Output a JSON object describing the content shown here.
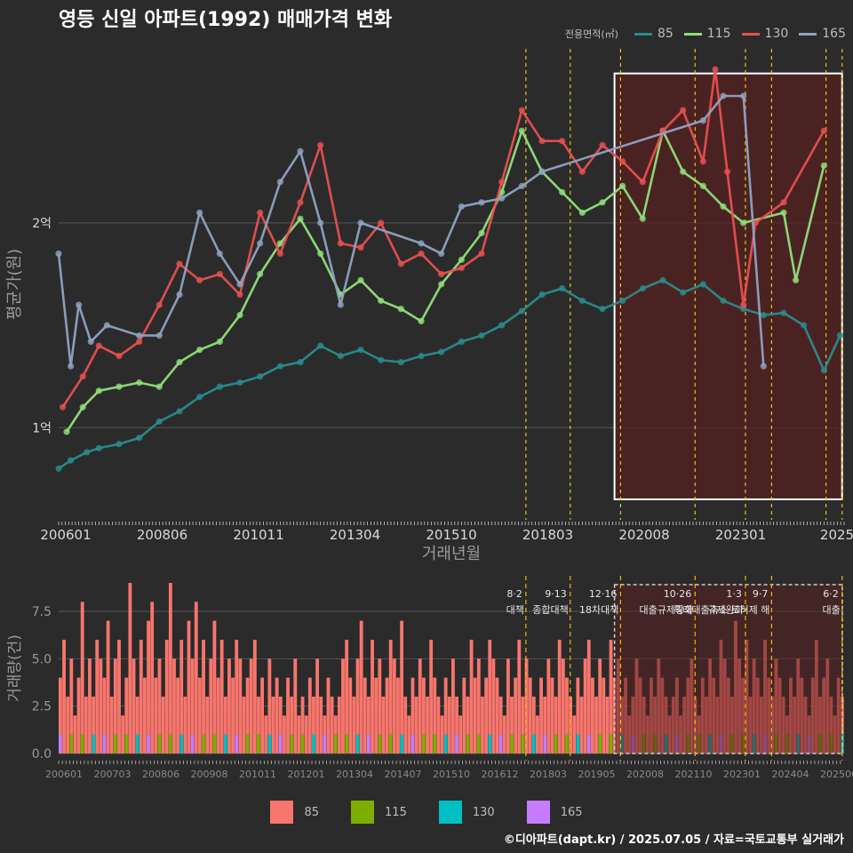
{
  "title": "영등 신일 아파트(1992) 매매가격 변화",
  "credit": "©디아파트(dapt.kr) / 2025.07.05 / 자료=국토교통부 실거래가",
  "colors": {
    "background": "#2b2b2b",
    "grid": "#555555",
    "axis_text": "#d9d9d9",
    "axis_title": "#9a9a9a",
    "event_line": "#e6c619",
    "highlight_fill": "#5a2020",
    "highlight_border": "#ffffff"
  },
  "chart_data": [
    {
      "type": "line",
      "title": "영등 신일 아파트(1992) 매매가격 변화",
      "xlabel": "거래년월",
      "ylabel": "평균가(원)",
      "x_tick_labels": [
        "200601",
        "200806",
        "201011",
        "201304",
        "201510",
        "201803",
        "202008",
        "202301",
        "2025"
      ],
      "y_ticks": [
        {
          "value": 1,
          "label": "1억"
        },
        {
          "value": 2,
          "label": "2억"
        }
      ],
      "ylim": [
        0.55,
        2.85
      ],
      "xlim": [
        2006.0,
        2025.5
      ],
      "grid": true,
      "legend_title": "전용면적(㎡)",
      "legend_position": "top-right",
      "highlight_box": {
        "x_start": 2019.8,
        "x_end": 2025.45,
        "y_start": 0.65,
        "y_end": 2.73
      },
      "event_lines_x": [
        2017.6,
        2018.7,
        2019.95,
        2021.8,
        2023.05,
        2023.7,
        2025.05,
        2025.45
      ],
      "series": [
        {
          "name": "85",
          "color": "#2a8c8c",
          "x": [
            2006.0,
            2006.3,
            2006.7,
            2007.0,
            2007.5,
            2008.0,
            2008.5,
            2009.0,
            2009.5,
            2010.0,
            2010.5,
            2011.0,
            2011.5,
            2012.0,
            2012.5,
            2013.0,
            2013.5,
            2014.0,
            2014.5,
            2015.0,
            2015.5,
            2016.0,
            2016.5,
            2017.0,
            2017.5,
            2018.0,
            2018.5,
            2019.0,
            2019.5,
            2020.0,
            2020.5,
            2021.0,
            2021.5,
            2022.0,
            2022.5,
            2023.0,
            2023.5,
            2024.0,
            2024.5,
            2025.0,
            2025.4
          ],
          "y": [
            0.8,
            0.84,
            0.88,
            0.9,
            0.92,
            0.95,
            1.03,
            1.08,
            1.15,
            1.2,
            1.22,
            1.25,
            1.3,
            1.32,
            1.4,
            1.35,
            1.38,
            1.33,
            1.32,
            1.35,
            1.37,
            1.42,
            1.45,
            1.5,
            1.57,
            1.65,
            1.68,
            1.62,
            1.58,
            1.62,
            1.68,
            1.72,
            1.66,
            1.7,
            1.62,
            1.58,
            1.55,
            1.56,
            1.5,
            1.28,
            1.45
          ]
        },
        {
          "name": "115",
          "color": "#8fe07a",
          "x": [
            2006.2,
            2006.6,
            2007.0,
            2007.5,
            2008.0,
            2008.5,
            2009.0,
            2009.5,
            2010.0,
            2010.5,
            2011.0,
            2011.5,
            2012.0,
            2012.5,
            2013.0,
            2013.5,
            2014.0,
            2014.5,
            2015.0,
            2015.5,
            2016.0,
            2016.5,
            2017.0,
            2017.5,
            2018.0,
            2018.5,
            2019.0,
            2019.5,
            2020.0,
            2020.5,
            2021.0,
            2021.5,
            2022.0,
            2022.5,
            2023.0,
            2024.0,
            2024.3,
            2025.0
          ],
          "y": [
            0.98,
            1.1,
            1.18,
            1.2,
            1.22,
            1.2,
            1.32,
            1.38,
            1.42,
            1.55,
            1.75,
            1.9,
            2.02,
            1.85,
            1.65,
            1.72,
            1.62,
            1.58,
            1.52,
            1.7,
            1.82,
            1.95,
            2.15,
            2.45,
            2.25,
            2.15,
            2.05,
            2.1,
            2.18,
            2.02,
            2.45,
            2.25,
            2.18,
            2.08,
            2.0,
            2.05,
            1.72,
            2.28
          ]
        },
        {
          "name": "130",
          "color": "#e85050",
          "x": [
            2006.1,
            2006.6,
            2007.0,
            2007.5,
            2008.0,
            2008.5,
            2009.0,
            2009.5,
            2010.0,
            2010.5,
            2011.0,
            2011.5,
            2012.0,
            2012.5,
            2013.0,
            2013.5,
            2014.0,
            2014.5,
            2015.0,
            2015.5,
            2016.0,
            2016.5,
            2017.0,
            2017.5,
            2018.0,
            2018.5,
            2019.0,
            2019.5,
            2020.0,
            2020.5,
            2021.0,
            2021.5,
            2022.0,
            2022.3,
            2022.6,
            2023.0,
            2023.3,
            2024.0,
            2025.0
          ],
          "y": [
            1.1,
            1.25,
            1.4,
            1.35,
            1.42,
            1.6,
            1.8,
            1.72,
            1.75,
            1.65,
            2.05,
            1.85,
            2.1,
            2.38,
            1.9,
            1.88,
            2.0,
            1.8,
            1.85,
            1.75,
            1.78,
            1.85,
            2.2,
            2.55,
            2.4,
            2.4,
            2.25,
            2.38,
            2.3,
            2.2,
            2.45,
            2.55,
            2.3,
            2.75,
            2.25,
            1.6,
            2.0,
            2.1,
            2.45
          ]
        },
        {
          "name": "165",
          "color": "#8fa2c2",
          "x": [
            2006.0,
            2006.3,
            2006.5,
            2006.8,
            2007.2,
            2008.0,
            2008.5,
            2009.0,
            2009.5,
            2010.0,
            2010.5,
            2011.0,
            2011.5,
            2012.0,
            2012.5,
            2013.0,
            2013.5,
            2015.0,
            2015.5,
            2016.0,
            2016.5,
            2017.0,
            2017.5,
            2018.0,
            2022.0,
            2022.5,
            2023.0,
            2023.5
          ],
          "y": [
            1.85,
            1.3,
            1.6,
            1.42,
            1.5,
            1.45,
            1.45,
            1.65,
            2.05,
            1.85,
            1.7,
            1.9,
            2.2,
            2.35,
            2.0,
            1.6,
            2.0,
            1.9,
            1.85,
            2.08,
            2.1,
            2.12,
            2.18,
            2.25,
            2.5,
            2.62,
            2.62,
            1.3
          ]
        }
      ]
    },
    {
      "type": "bar",
      "ylabel": "거래량(건)",
      "y_ticks": [
        {
          "value": 0,
          "label": "0.0"
        },
        {
          "value": 2.5,
          "label": "2.5"
        },
        {
          "value": 5,
          "label": "5.0"
        },
        {
          "value": 7.5,
          "label": "7.5"
        }
      ],
      "ylim": [
        0,
        9
      ],
      "x_tick_labels": [
        "200601",
        "200703",
        "200806",
        "200908",
        "201011",
        "201201",
        "201304",
        "201407",
        "201510",
        "201612",
        "201803",
        "201905",
        "202008",
        "202110",
        "202301",
        "202404",
        "202506"
      ],
      "legend_position": "bottom",
      "annotations": [
        {
          "x": 2017.6,
          "date": "8·2",
          "label": "대책"
        },
        {
          "x": 2018.7,
          "date": "9·13",
          "label": "종합대책"
        },
        {
          "x": 2019.95,
          "date": "12·16",
          "label": "18차대책"
        },
        {
          "x": 2021.8,
          "date": "10·26",
          "label": "대출규제강화"
        },
        {
          "x": 2023.05,
          "date": "1·3",
          "label": "규제완화"
        },
        {
          "x": 2023.7,
          "date": "9·7",
          "label": "특례대출축소 토허제 해"
        },
        {
          "x": 2025.45,
          "date": "6·2",
          "label": "대출"
        }
      ],
      "series": [
        {
          "name": "85",
          "color": "#f8766d"
        },
        {
          "name": "115",
          "color": "#7cae00"
        },
        {
          "name": "130",
          "color": "#00bfc4"
        },
        {
          "name": "165",
          "color": "#c77cff"
        }
      ],
      "total_monthly_approx": [
        4,
        6,
        3,
        5,
        2,
        4,
        8,
        3,
        5,
        3,
        6,
        5,
        4,
        7,
        3,
        5,
        6,
        2,
        4,
        9,
        5,
        3,
        6,
        4,
        7,
        8,
        4,
        5,
        3,
        6,
        9,
        5,
        4,
        6,
        3,
        7,
        5,
        8,
        4,
        6,
        3,
        5,
        7,
        4,
        6,
        3,
        5,
        4,
        6,
        5,
        3,
        4,
        5,
        6,
        3,
        4,
        2,
        5,
        3,
        4,
        3,
        2,
        4,
        3,
        5,
        2,
        3,
        2,
        4,
        3,
        5,
        3,
        2,
        4,
        3,
        2,
        3,
        5,
        6,
        4,
        3,
        5,
        7,
        4,
        3,
        6,
        4,
        5,
        3,
        4,
        6,
        5,
        4,
        7,
        3,
        2,
        4,
        3,
        5,
        4,
        3,
        6,
        4,
        3,
        2,
        4,
        3,
        5,
        3,
        2,
        4,
        3,
        6,
        4,
        5,
        3,
        4,
        6,
        5,
        4,
        3,
        2,
        5,
        3,
        4,
        6,
        3,
        5,
        4,
        3,
        2,
        4,
        3,
        5,
        4,
        3,
        6,
        5,
        4,
        3,
        2,
        4,
        3,
        5,
        6,
        4,
        3,
        5,
        4,
        3,
        6,
        4,
        5,
        3,
        4,
        2,
        3,
        5,
        4,
        3,
        2,
        4,
        3,
        5,
        4,
        3,
        2,
        3,
        4,
        2,
        3,
        4,
        5,
        3,
        2,
        4,
        3,
        5,
        4,
        3,
        6,
        5,
        4,
        3,
        7,
        5,
        4,
        6,
        3,
        5,
        4,
        3,
        6,
        4,
        3,
        5,
        4,
        3,
        2,
        4,
        3,
        5,
        4,
        3,
        2,
        4,
        6,
        3,
        4,
        5,
        3,
        2,
        4,
        3
      ]
    }
  ]
}
